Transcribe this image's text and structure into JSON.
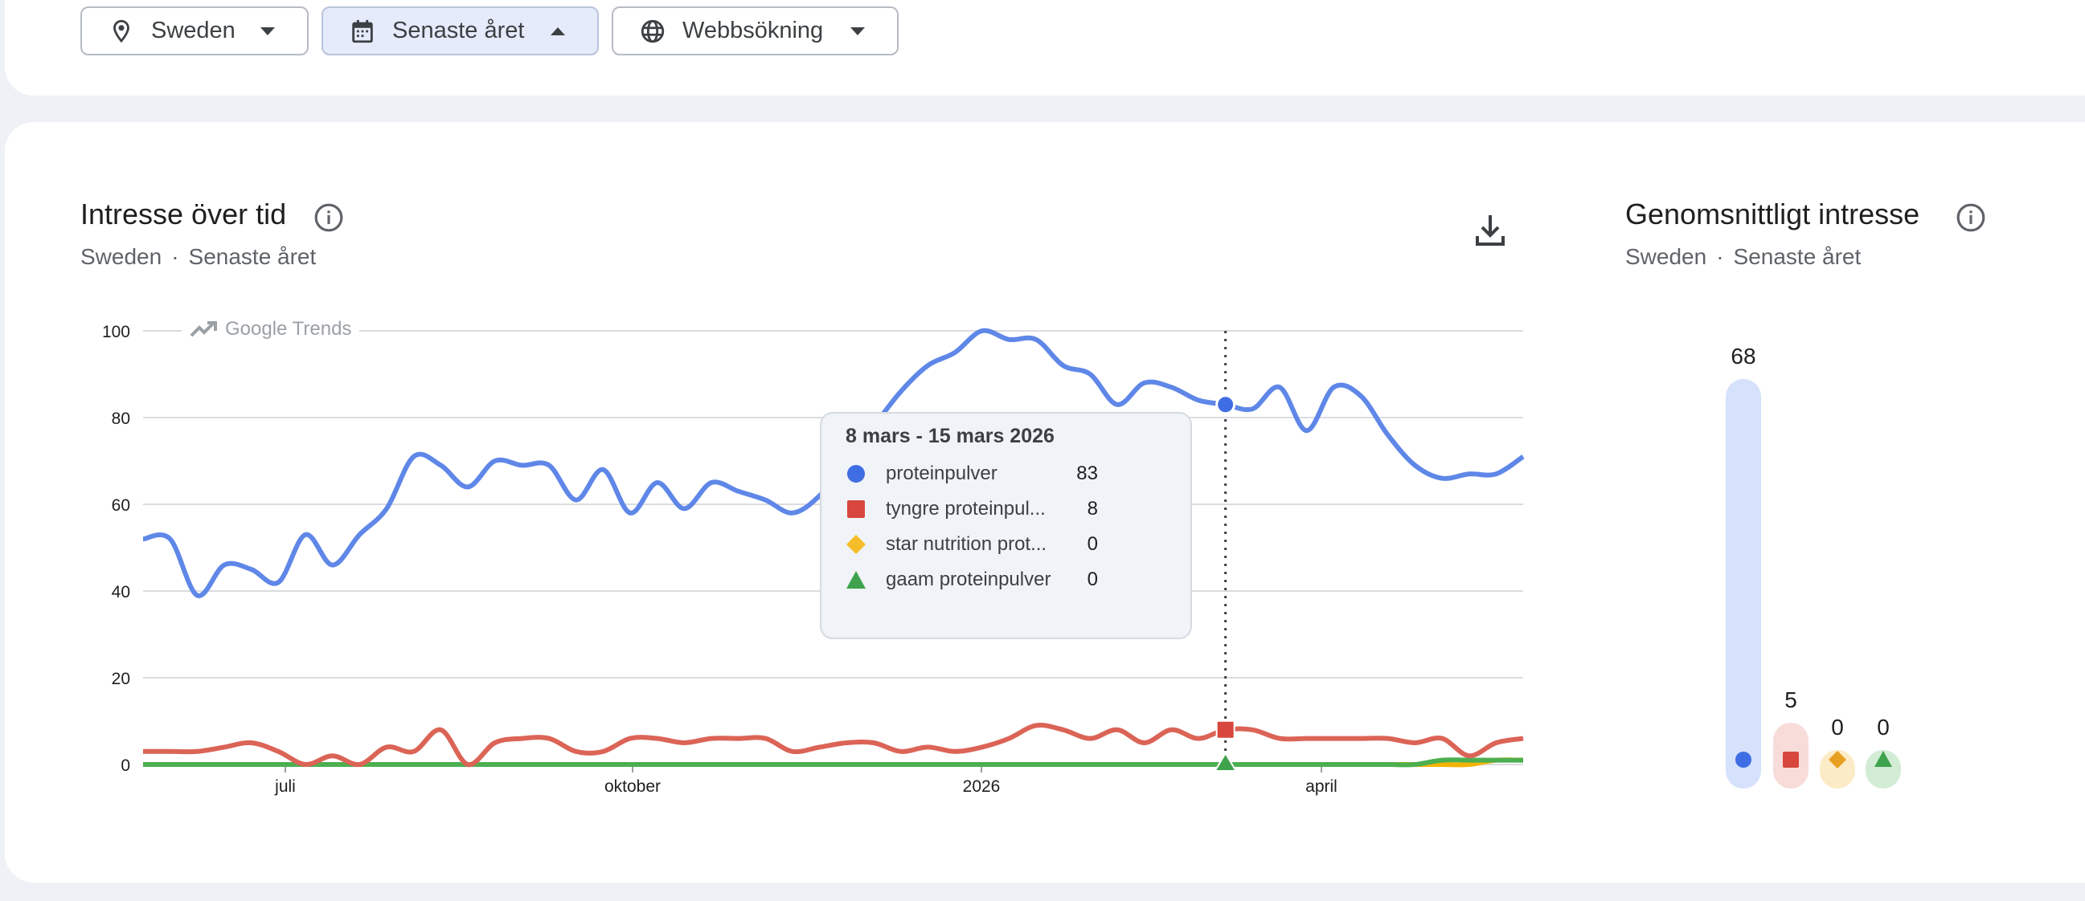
{
  "filters": [
    {
      "label": "Sweden",
      "icon": "location-pin-icon",
      "caret": "down"
    },
    {
      "label": "Senaste året",
      "icon": "calendar-icon",
      "caret": "up"
    },
    {
      "label": "Webbsökning",
      "icon": "globe-icon",
      "caret": "down"
    }
  ],
  "interest_over_time": {
    "title": "Intresse över tid",
    "region": "Sweden",
    "period": "Senaste året",
    "separator": "·",
    "watermark": "Google Trends"
  },
  "tooltip": {
    "date": "8 mars - 15 mars 2026",
    "rows": [
      {
        "name": "proteinpulver",
        "value": "83"
      },
      {
        "name": "tyngre proteinpul...",
        "value": "8"
      },
      {
        "name": "star nutrition prot...",
        "value": "0"
      },
      {
        "name": "gaam proteinpulver",
        "value": "0"
      }
    ]
  },
  "average_interest": {
    "title": "Genomsnittligt intresse",
    "region": "Sweden",
    "period": "Senaste året",
    "separator": "·",
    "values": [
      "68",
      "5",
      "0",
      "0"
    ]
  },
  "colors": {
    "proteinpulver": "#5f87e8",
    "tyngre": "#db6456",
    "star": "#f4b400",
    "gaam": "#4caf50"
  },
  "chart_data": {
    "type": "line",
    "x_tick_labels": [
      "juli",
      "oktober",
      "2026",
      "april"
    ],
    "ylim": [
      0,
      100
    ],
    "y_ticks": [
      0,
      20,
      40,
      60,
      80,
      100
    ],
    "grid": true,
    "highlighted_week": "8 mars - 15 mars 2026",
    "series": [
      {
        "name": "proteinpulver",
        "color": "#5f87e8",
        "values": [
          52,
          52,
          39,
          46,
          45,
          42,
          53,
          46,
          53,
          59,
          71,
          69,
          64,
          70,
          69,
          69,
          61,
          68,
          58,
          65,
          59,
          65,
          63,
          61,
          58,
          62,
          70,
          78,
          86,
          92,
          95,
          100,
          98,
          98,
          92,
          90,
          83,
          88,
          87,
          84,
          83,
          82,
          87,
          77,
          87,
          85,
          76,
          69,
          66,
          67,
          67,
          71
        ]
      },
      {
        "name": "tyngre proteinpul...",
        "color": "#db6456",
        "values": [
          3,
          3,
          3,
          4,
          5,
          3,
          0,
          2,
          0,
          4,
          3,
          8,
          0,
          5,
          6,
          6,
          3,
          3,
          6,
          6,
          5,
          6,
          6,
          6,
          3,
          4,
          5,
          5,
          3,
          4,
          3,
          4,
          6,
          9,
          8,
          6,
          8,
          5,
          8,
          6,
          8,
          8,
          6,
          6,
          6,
          6,
          6,
          5,
          6,
          2,
          5,
          6
        ]
      },
      {
        "name": "star nutrition prot...",
        "color": "#f4b400",
        "values": [
          0,
          0,
          0,
          0,
          0,
          0,
          0,
          0,
          0,
          0,
          0,
          0,
          0,
          0,
          0,
          0,
          0,
          0,
          0,
          0,
          0,
          0,
          0,
          0,
          0,
          0,
          0,
          0,
          0,
          0,
          0,
          0,
          0,
          0,
          0,
          0,
          0,
          0,
          0,
          0,
          0,
          0,
          0,
          0,
          0,
          0,
          0,
          0,
          0,
          0,
          1,
          1
        ]
      },
      {
        "name": "gaam proteinpulver",
        "color": "#4caf50",
        "values": [
          0,
          0,
          0,
          0,
          0,
          0,
          0,
          0,
          0,
          0,
          0,
          0,
          0,
          0,
          0,
          0,
          0,
          0,
          0,
          0,
          0,
          0,
          0,
          0,
          0,
          0,
          0,
          0,
          0,
          0,
          0,
          0,
          0,
          0,
          0,
          0,
          0,
          0,
          0,
          0,
          0,
          0,
          0,
          0,
          0,
          0,
          0,
          0,
          1,
          1,
          1,
          1
        ]
      }
    ]
  }
}
